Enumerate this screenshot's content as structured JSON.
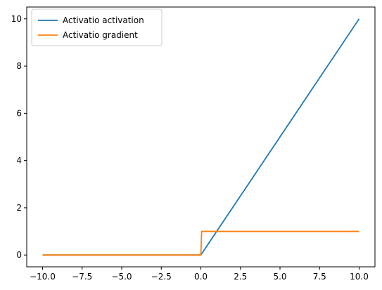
{
  "chart_data": {
    "type": "line",
    "title": "",
    "xlabel": "",
    "ylabel": "",
    "xlim": [
      -11,
      11
    ],
    "ylim": [
      -0.5,
      10.5
    ],
    "xticks": [
      -10.0,
      -7.5,
      -5.0,
      -2.5,
      0.0,
      2.5,
      5.0,
      7.5,
      10.0
    ],
    "xtick_labels": [
      "−10.0",
      "−7.5",
      "−5.0",
      "−2.5",
      "0.0",
      "2.5",
      "5.0",
      "7.5",
      "10.0"
    ],
    "yticks": [
      0,
      2,
      4,
      6,
      8,
      10
    ],
    "ytick_labels": [
      "0",
      "2",
      "4",
      "6",
      "8",
      "10"
    ],
    "grid": false,
    "legend_position": "top-left",
    "series": [
      {
        "name": "Activatio activation",
        "color": "#1f77b4",
        "x": [
          -10,
          0,
          10
        ],
        "y": [
          0,
          0,
          10
        ]
      },
      {
        "name": "Activatio gradient",
        "color": "#ff7f0e",
        "x": [
          -10,
          0,
          0.05,
          10
        ],
        "y": [
          0,
          0,
          1,
          1
        ]
      }
    ]
  }
}
